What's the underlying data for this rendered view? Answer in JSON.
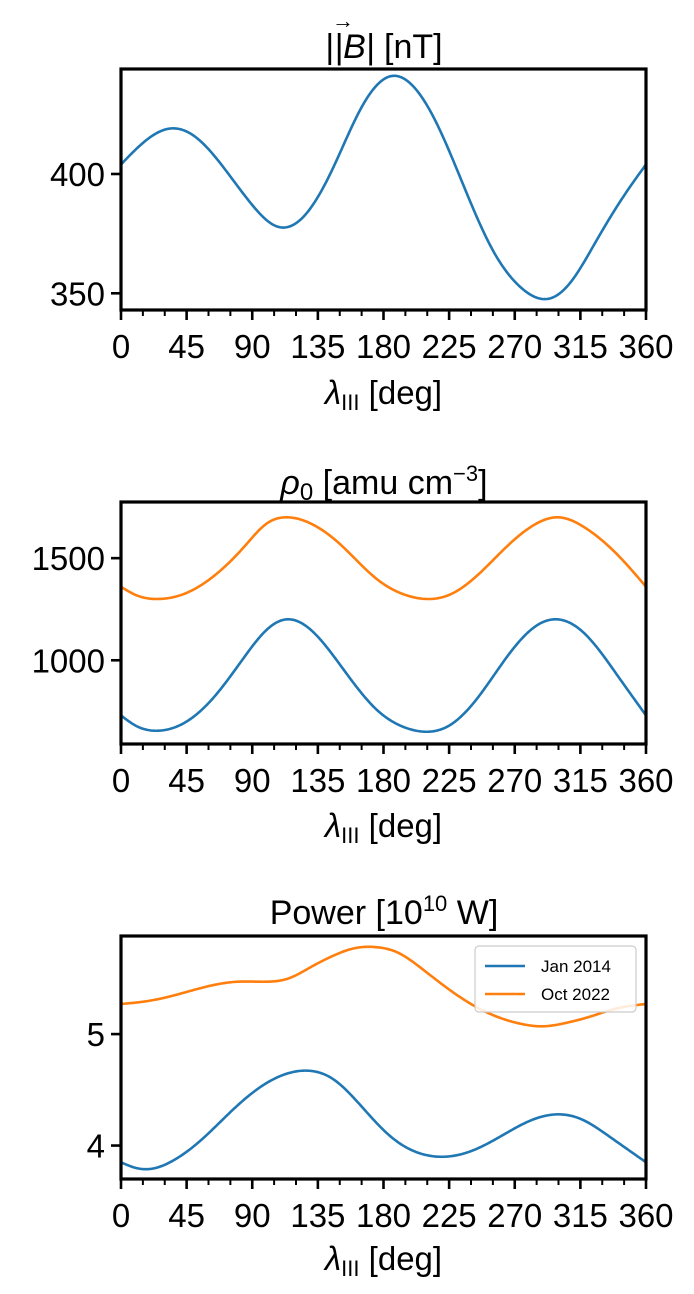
{
  "chart_data": [
    {
      "type": "line",
      "title": "|B⃗| [nT]",
      "title_parts": {
        "main": "|B|",
        "arrow": "→",
        "unit": " [nT]"
      },
      "xlabel": "λIII [deg]",
      "xlabel_parts": {
        "symbol": "λ",
        "sub": "III",
        "rest": " [deg]"
      },
      "xlim": [
        0,
        360
      ],
      "ylim": [
        343,
        444
      ],
      "xticks": [
        0,
        45,
        90,
        135,
        180,
        225,
        270,
        315,
        360
      ],
      "xtick_labels": [
        "0",
        "45",
        "90",
        "135",
        "180",
        "225",
        "270",
        "315",
        "360"
      ],
      "xminor_step": 15,
      "yticks": [
        350,
        400
      ],
      "ytick_labels": [
        "350",
        "400"
      ],
      "grid": false,
      "legend": null,
      "series": [
        {
          "color": "#1f77b4",
          "x": [
            0,
            15,
            33,
            50,
            70,
            90,
            107,
            125,
            145,
            165,
            185,
            200,
            215,
            235,
            255,
            275,
            295,
            310,
            325,
            345,
            360
          ],
          "y": [
            404,
            413,
            419,
            416,
            403,
            387,
            378,
            382,
            402,
            428,
            441,
            437,
            423,
            395,
            368,
            352,
            348,
            356,
            371,
            391,
            404
          ]
        }
      ]
    },
    {
      "type": "line",
      "title": "ρ0 [amu cm⁻³]",
      "title_parts": {
        "symbol": "ρ",
        "sub": "0",
        "unit": " [amu cm",
        "sup": "−3",
        "close": "]"
      },
      "xlabel": "λIII [deg]",
      "xlabel_parts": {
        "symbol": "λ",
        "sub": "III",
        "rest": " [deg]"
      },
      "xlim": [
        0,
        360
      ],
      "ylim": [
        590,
        1775
      ],
      "xticks": [
        0,
        45,
        90,
        135,
        180,
        225,
        270,
        315,
        360
      ],
      "xtick_labels": [
        "0",
        "45",
        "90",
        "135",
        "180",
        "225",
        "270",
        "315",
        "360"
      ],
      "xminor_step": 15,
      "yticks": [
        1000,
        1500
      ],
      "ytick_labels": [
        "1000",
        "1500"
      ],
      "grid": false,
      "legend": null,
      "series": [
        {
          "color": "#1f77b4",
          "x": [
            0,
            10,
            25,
            45,
            65,
            85,
            100,
            113,
            130,
            150,
            175,
            195,
            210,
            225,
            245,
            265,
            285,
            300,
            318,
            340,
            360
          ],
          "y": [
            730,
            680,
            655,
            700,
            830,
            1020,
            1150,
            1200,
            1150,
            980,
            760,
            670,
            650,
            680,
            820,
            1020,
            1170,
            1200,
            1130,
            930,
            730
          ]
        },
        {
          "color": "#ff7f0e",
          "x": [
            0,
            10,
            25,
            45,
            65,
            85,
            100,
            113,
            130,
            150,
            175,
            195,
            210,
            225,
            245,
            265,
            285,
            300,
            318,
            340,
            360
          ],
          "y": [
            1360,
            1320,
            1300,
            1330,
            1420,
            1560,
            1670,
            1700,
            1670,
            1570,
            1400,
            1320,
            1300,
            1320,
            1420,
            1560,
            1670,
            1700,
            1650,
            1520,
            1360
          ]
        }
      ]
    },
    {
      "type": "line",
      "title": "Power [10¹⁰ W]",
      "title_parts": {
        "main": "Power [10",
        "sup": "10",
        "rest": " W]"
      },
      "xlabel": "λIII [deg]",
      "xlabel_parts": {
        "symbol": "λ",
        "sub": "III",
        "rest": " [deg]"
      },
      "xlim": [
        0,
        360
      ],
      "ylim": [
        3.7,
        5.88
      ],
      "xticks": [
        0,
        45,
        90,
        135,
        180,
        225,
        270,
        315,
        360
      ],
      "xtick_labels": [
        "0",
        "45",
        "90",
        "135",
        "180",
        "225",
        "270",
        "315",
        "360"
      ],
      "xminor_step": 15,
      "yticks": [
        4,
        5
      ],
      "ytick_labels": [
        "4",
        "5"
      ],
      "grid": false,
      "legend": {
        "placement": "upper right",
        "entries": [
          "Jan 2014",
          "Oct 2022"
        ]
      },
      "series": [
        {
          "name": "Jan 2014",
          "color": "#1f77b4",
          "x": [
            0,
            10,
            20,
            35,
            55,
            75,
            95,
            115,
            130,
            145,
            165,
            185,
            205,
            222,
            240,
            260,
            280,
            300,
            315,
            335,
            360
          ],
          "y": [
            3.85,
            3.8,
            3.79,
            3.86,
            4.05,
            4.3,
            4.52,
            4.65,
            4.67,
            4.6,
            4.35,
            4.08,
            3.93,
            3.9,
            3.95,
            4.08,
            4.22,
            4.28,
            4.24,
            4.08,
            3.85
          ]
        },
        {
          "name": "Oct 2022",
          "color": "#ff7f0e",
          "x": [
            0,
            20,
            40,
            60,
            80,
            100,
            115,
            130,
            145,
            160,
            175,
            190,
            205,
            225,
            250,
            275,
            290,
            305,
            320,
            340,
            360
          ],
          "y": [
            5.27,
            5.3,
            5.36,
            5.43,
            5.47,
            5.47,
            5.5,
            5.6,
            5.7,
            5.77,
            5.78,
            5.73,
            5.6,
            5.4,
            5.2,
            5.09,
            5.07,
            5.1,
            5.15,
            5.23,
            5.27
          ]
        }
      ]
    }
  ]
}
